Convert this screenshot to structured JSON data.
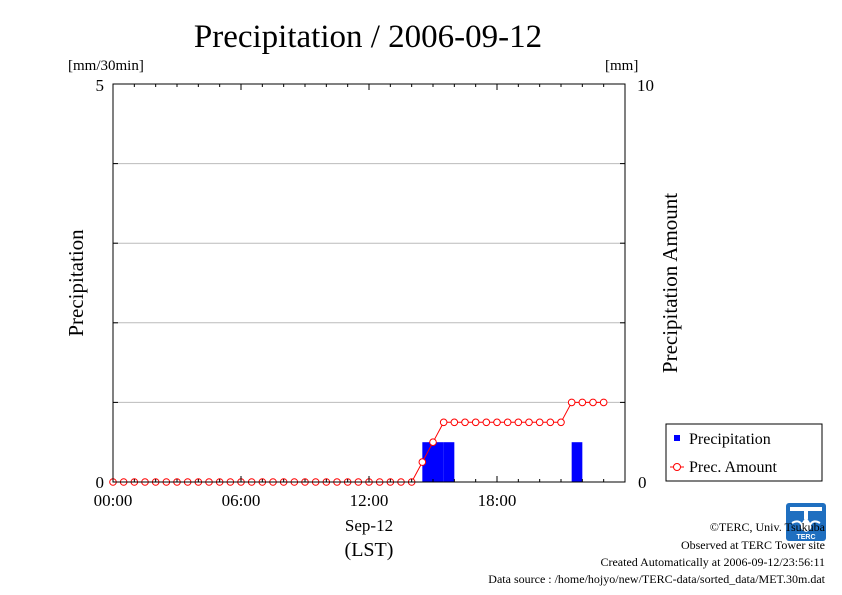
{
  "chart_data": {
    "type": "bar+line",
    "title": "Precipitation / 2006-09-12",
    "left_unit": "[mm/30min]",
    "right_unit": "[mm]",
    "ylabel_left": "Precipitation",
    "ylabel_right": "Precipitation Amount",
    "ylim_left": [
      0,
      5
    ],
    "ylim_right": [
      0,
      10
    ],
    "left_tick_labels": [
      "0",
      "5"
    ],
    "right_tick_labels": [
      "0",
      "10"
    ],
    "x_tick_labels": [
      "00:00",
      "06:00",
      "12:00",
      "18:00"
    ],
    "x_date_label": "Sep-12",
    "x_zone_label": "(LST)",
    "grid": true,
    "legend_placement": "right",
    "legend": [
      {
        "label": "Precipitation",
        "color": "#0000ff",
        "marker": "square"
      },
      {
        "label": "Prec. Amount",
        "color": "#ff0000",
        "marker": "circle-line"
      }
    ],
    "series": [
      {
        "name": "Precipitation",
        "type": "bar",
        "axis": "left",
        "unit": "mm/30min",
        "color": "#0000ff",
        "x": [
          "14:30",
          "15:00",
          "15:30",
          "21:30"
        ],
        "values": [
          0.5,
          0.5,
          0.5,
          0.5
        ]
      },
      {
        "name": "Prec. Amount",
        "type": "line",
        "axis": "right",
        "unit": "mm",
        "color": "#ff0000",
        "x": [
          "00:00",
          "00:30",
          "01:00",
          "01:30",
          "02:00",
          "02:30",
          "03:00",
          "03:30",
          "04:00",
          "04:30",
          "05:00",
          "05:30",
          "06:00",
          "06:30",
          "07:00",
          "07:30",
          "08:00",
          "08:30",
          "09:00",
          "09:30",
          "10:00",
          "10:30",
          "11:00",
          "11:30",
          "12:00",
          "12:30",
          "13:00",
          "13:30",
          "14:00",
          "14:30",
          "15:00",
          "15:30",
          "16:00",
          "16:30",
          "17:00",
          "17:30",
          "18:00",
          "18:30",
          "19:00",
          "19:30",
          "20:00",
          "20:30",
          "21:00",
          "21:30",
          "22:00",
          "22:30",
          "23:00"
        ],
        "values": [
          0,
          0,
          0,
          0,
          0,
          0,
          0,
          0,
          0,
          0,
          0,
          0,
          0,
          0,
          0,
          0,
          0,
          0,
          0,
          0,
          0,
          0,
          0,
          0,
          0,
          0,
          0,
          0,
          0,
          0.5,
          1.0,
          1.5,
          1.5,
          1.5,
          1.5,
          1.5,
          1.5,
          1.5,
          1.5,
          1.5,
          1.5,
          1.5,
          1.5,
          2.0,
          2.0,
          2.0,
          2.0
        ]
      }
    ]
  },
  "footer": {
    "copyright": "©TERC, Univ. Tsukuba",
    "observed": "Observed at TERC Tower site",
    "created": "Created Automatically at 2006-09-12/23:56:11",
    "source": "Data source : /home/hojyo/new/TERC-data/sorted_data/MET.30m.dat"
  },
  "logo": {
    "text": "TERC",
    "color": "#1f6fc0"
  }
}
